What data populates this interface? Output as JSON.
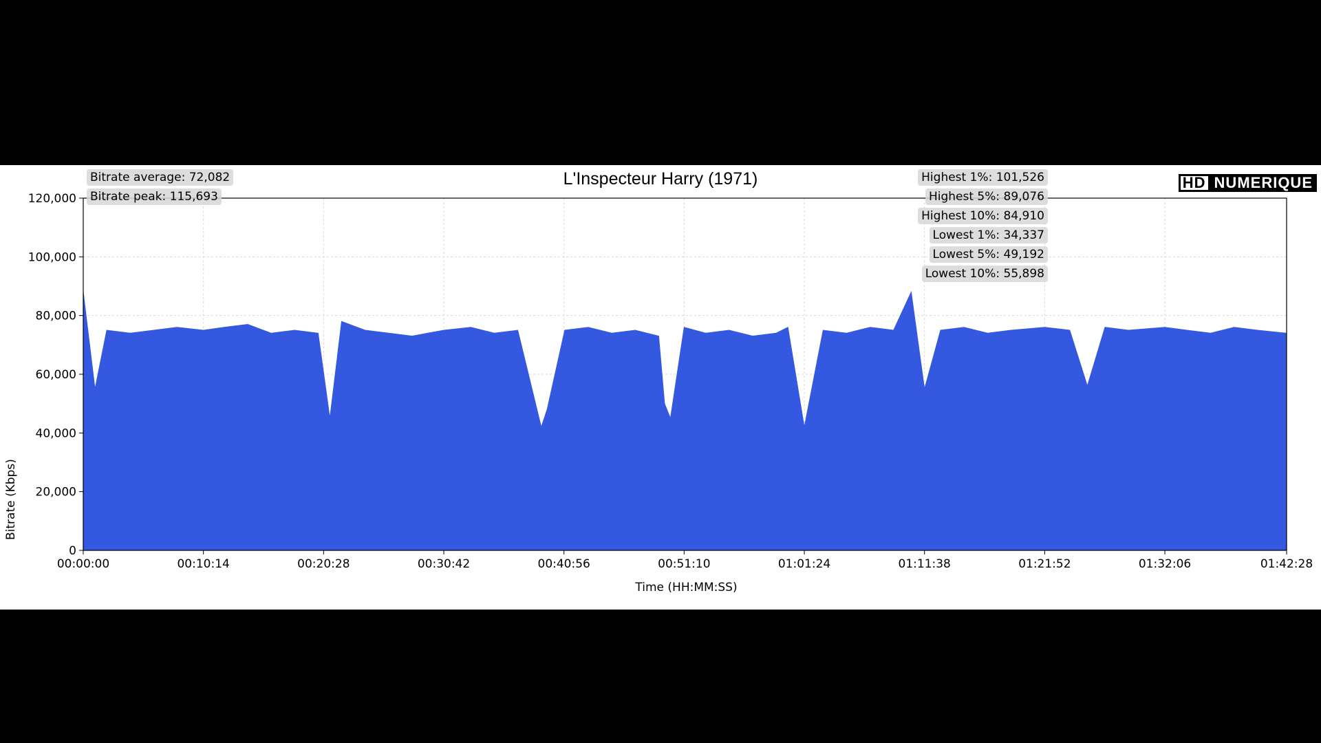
{
  "chart_data": {
    "type": "area",
    "title": "L'Inspecteur Harry (1971)",
    "xlabel": "Time (HH:MM:SS)",
    "ylabel": "Bitrate (Kbps)",
    "ylim": [
      0,
      120000
    ],
    "yticks": [
      0,
      20000,
      40000,
      60000,
      80000,
      100000,
      120000
    ],
    "ytick_labels": [
      "0",
      "20,000",
      "40,000",
      "60,000",
      "80,000",
      "100,000",
      "120,000"
    ],
    "xlim_seconds": [
      0,
      6148
    ],
    "xtick_labels": [
      "00:00:00",
      "00:10:14",
      "00:20:28",
      "00:30:42",
      "00:40:56",
      "00:51:10",
      "01:01:24",
      "01:11:38",
      "01:21:52",
      "01:32:06",
      "01:42:28"
    ],
    "color": "#3558e0",
    "grid": true,
    "series": [
      {
        "x": [
          "00:00:00",
          "00:01:00",
          "00:02:00",
          "00:04:00",
          "00:06:00",
          "00:08:00",
          "00:10:14",
          "00:12:00",
          "00:14:00",
          "00:16:00",
          "00:18:00",
          "00:20:00",
          "00:21:00",
          "00:22:00",
          "00:24:00",
          "00:26:00",
          "00:28:00",
          "00:30:42",
          "00:33:00",
          "00:35:00",
          "00:37:00",
          "00:39:00",
          "00:39:30",
          "00:41:00",
          "00:43:00",
          "00:45:00",
          "00:47:00",
          "00:49:00",
          "00:49:30",
          "00:50:00",
          "00:51:10",
          "00:53:00",
          "00:55:00",
          "00:57:00",
          "00:59:00",
          "01:00:00",
          "01:01:24",
          "01:03:00",
          "01:05:00",
          "01:07:00",
          "01:09:00",
          "01:10:30",
          "01:11:38",
          "01:13:00",
          "01:15:00",
          "01:17:00",
          "01:19:00",
          "01:21:52",
          "01:24:00",
          "01:25:30",
          "01:27:00",
          "01:29:00",
          "01:32:06",
          "01:34:00",
          "01:36:00",
          "01:38:00",
          "01:40:00",
          "01:42:28"
        ],
        "y": [
          88000,
          55000,
          75000,
          74000,
          75000,
          76000,
          75000,
          76000,
          77000,
          74000,
          75000,
          74000,
          45000,
          78000,
          75000,
          74000,
          73000,
          75000,
          76000,
          74000,
          75000,
          42000,
          48000,
          75000,
          76000,
          74000,
          75000,
          73000,
          50000,
          45000,
          76000,
          74000,
          75000,
          73000,
          74000,
          76000,
          42000,
          75000,
          74000,
          76000,
          75000,
          88000,
          55000,
          75000,
          76000,
          74000,
          75000,
          76000,
          75000,
          56000,
          76000,
          75000,
          76000,
          75000,
          74000,
          76000,
          75000,
          74000
        ]
      }
    ],
    "annotations_left": [
      "Bitrate average: 72,082",
      "Bitrate peak: 115,693"
    ],
    "annotations_right": [
      "Highest 1%: 101,526",
      "Highest 5%: 89,076",
      "Highest 10%: 84,910",
      "Lowest 1%: 34,337",
      "Lowest 5%: 49,192",
      "Lowest 10%: 55,898"
    ],
    "logo_text": [
      "HD",
      "NUMERIQUE"
    ]
  }
}
